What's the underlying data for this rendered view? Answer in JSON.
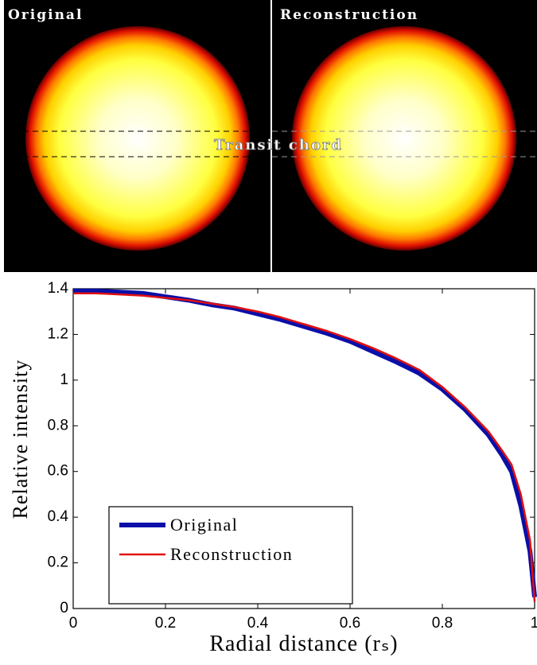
{
  "images": {
    "left_title": "Original",
    "right_title": "Reconstruction",
    "annotation": "Transit chord"
  },
  "chart_data": {
    "type": "line",
    "xlabel": "Radial distance (rₛ)",
    "ylabel": "Relative intensity",
    "x": [
      0,
      0.05,
      0.1,
      0.15,
      0.2,
      0.25,
      0.3,
      0.35,
      0.4,
      0.45,
      0.5,
      0.55,
      0.6,
      0.65,
      0.7,
      0.75,
      0.8,
      0.85,
      0.9,
      0.93,
      0.95,
      0.97,
      0.99,
      1.0
    ],
    "series": [
      {
        "name": "Original",
        "color": "#0a0fa8",
        "width": 6,
        "values": [
          1.39,
          1.39,
          1.385,
          1.38,
          1.365,
          1.35,
          1.33,
          1.315,
          1.29,
          1.265,
          1.235,
          1.205,
          1.17,
          1.125,
          1.08,
          1.03,
          0.96,
          0.87,
          0.76,
          0.67,
          0.6,
          0.45,
          0.25,
          0.05
        ]
      },
      {
        "name": "Reconstruction",
        "color": "#e01010",
        "width": 2.5,
        "values": [
          1.38,
          1.38,
          1.375,
          1.37,
          1.36,
          1.35,
          1.335,
          1.32,
          1.3,
          1.275,
          1.245,
          1.215,
          1.18,
          1.14,
          1.095,
          1.045,
          0.97,
          0.88,
          0.775,
          0.69,
          0.63,
          0.5,
          0.3,
          0.03
        ]
      }
    ],
    "xlim": [
      0,
      1
    ],
    "xticks": [
      0,
      0.2,
      0.4,
      0.6,
      0.8,
      1
    ],
    "ylim": [
      0,
      1.4
    ],
    "yticks": [
      0,
      0.2,
      0.4,
      0.6,
      0.8,
      1,
      1.2,
      1.4
    ],
    "legend": "lower left"
  }
}
